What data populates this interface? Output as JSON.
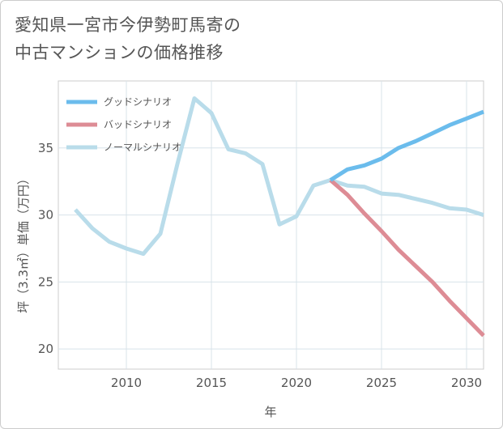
{
  "title_lines": [
    "愛知県一宮市今伊勢町馬寄の",
    "中古マンションの価格推移"
  ],
  "chart_data": {
    "type": "line",
    "title": "愛知県一宮市今伊勢町馬寄の中古マンションの価格推移",
    "xlabel": "年",
    "ylabel": "坪（3.3㎡）単価（万円）",
    "xlim": [
      2006,
      2031
    ],
    "ylim": [
      18.5,
      40.0
    ],
    "x_ticks": [
      2010,
      2015,
      2020,
      2025,
      2030
    ],
    "y_ticks": [
      20,
      25,
      30,
      35
    ],
    "legend_position": "top-left",
    "series": [
      {
        "name": "グッドシナリオ",
        "color": "#6bbcec",
        "x": [
          2022,
          2023,
          2024,
          2025,
          2026,
          2027,
          2028,
          2029,
          2030,
          2031
        ],
        "values": [
          32.6,
          33.4,
          33.7,
          34.2,
          35.0,
          35.5,
          36.1,
          36.7,
          37.2,
          37.7
        ]
      },
      {
        "name": "バッドシナリオ",
        "color": "#dd8c95",
        "x": [
          2022,
          2023,
          2024,
          2025,
          2026,
          2027,
          2028,
          2029,
          2030,
          2031
        ],
        "values": [
          32.6,
          31.5,
          30.1,
          28.8,
          27.4,
          26.2,
          25.0,
          23.6,
          22.3,
          21.0
        ]
      },
      {
        "name": "ノーマルシナリオ",
        "color": "#b9dcea",
        "x": [
          2007,
          2008,
          2009,
          2010,
          2011,
          2012,
          2013,
          2014,
          2015,
          2016,
          2017,
          2018,
          2019,
          2020,
          2021,
          2022,
          2023,
          2024,
          2025,
          2026,
          2027,
          2028,
          2029,
          2030,
          2031
        ],
        "values": [
          30.4,
          29.0,
          28.0,
          27.5,
          27.1,
          28.6,
          33.8,
          38.7,
          37.6,
          34.9,
          34.6,
          33.8,
          29.3,
          29.9,
          32.2,
          32.6,
          32.2,
          32.1,
          31.6,
          31.5,
          31.2,
          30.9,
          30.5,
          30.4,
          30.0
        ]
      }
    ]
  }
}
